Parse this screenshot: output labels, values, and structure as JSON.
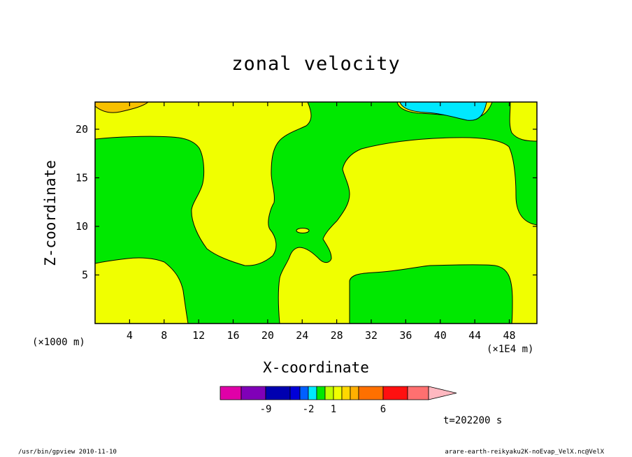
{
  "chart_data": {
    "type": "heatmap",
    "title": "zonal velocity",
    "xlabel": "X-coordinate",
    "ylabel": "Z-coordinate",
    "x_unit_left": "(×1000 m)",
    "x_unit_right": "(×1E4 m)",
    "x_ticks": [
      4,
      8,
      12,
      16,
      20,
      24,
      28,
      32,
      36,
      40,
      44,
      48
    ],
    "y_ticks": [
      5,
      10,
      15,
      20
    ],
    "xlim": [
      0,
      51.2
    ],
    "ylim": [
      0,
      22.8
    ],
    "colors": {
      "yellow": "#f0ff00",
      "green": "#00e800",
      "cyan": "#00e8ff",
      "orange_light": "#f8c000"
    },
    "colorbar": {
      "colors": [
        "#e000a8",
        "#8000b8",
        "#0000b0",
        "#0000d8",
        "#0060ff",
        "#00e8ff",
        "#00e800",
        "#c0ff00",
        "#f0ff00",
        "#ffd800",
        "#ffb000",
        "#ff7000",
        "#ff1010",
        "#ff7070",
        "#ffb8c0"
      ],
      "tick_labels": [
        "-9",
        "-2",
        "1",
        "6"
      ]
    },
    "time_label": "t=202200 s"
  },
  "footer": {
    "left": "/usr/bin/gpview  2010-11-10",
    "right": "arare-earth-reikyaku2K-noEvap_VelX.nc@VelX"
  }
}
